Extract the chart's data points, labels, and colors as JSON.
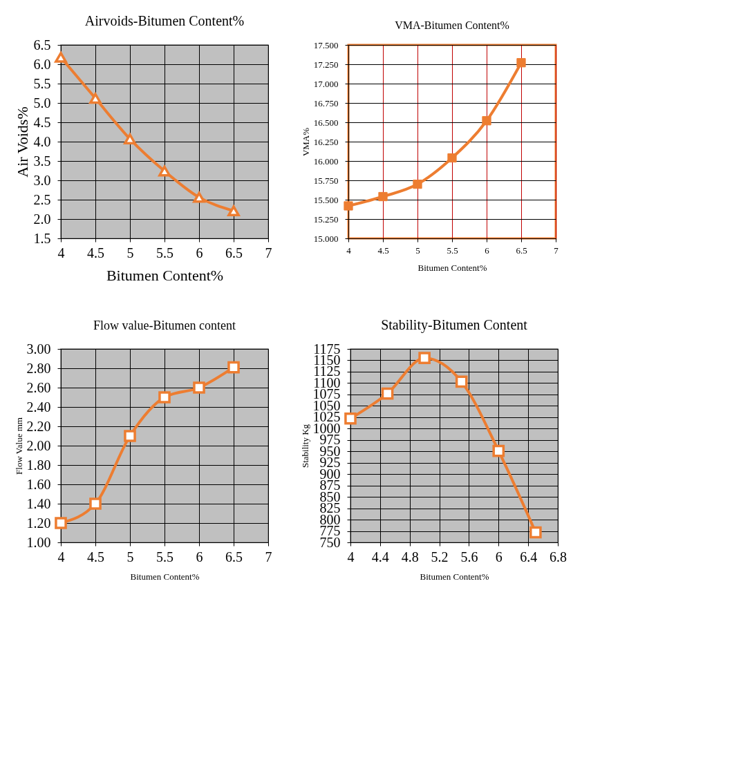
{
  "chart_data": [
    {
      "type": "line",
      "title": "Airvoids-Bitumen Content%",
      "xlabel": "Bitumen Content%",
      "ylabel": "Air Voids%",
      "x": [
        4,
        4.5,
        5,
        5.5,
        6,
        6.5
      ],
      "series": [
        {
          "color": "#ed7d31",
          "values": [
            6.18,
            5.12,
            4.07,
            3.24,
            2.56,
            2.21
          ]
        }
      ],
      "xlim": [
        4,
        7
      ],
      "xticks": [
        4,
        4.5,
        5,
        5.5,
        6,
        6.5,
        7
      ],
      "ylim": [
        1.5,
        6.5
      ],
      "yticks": [
        {
          "value": 1.5,
          "label": "1.5"
        },
        {
          "value": 2,
          "label": "2.0"
        },
        {
          "value": 2.5,
          "label": "2.5"
        },
        {
          "value": 3,
          "label": "3.0"
        },
        {
          "value": 3.5,
          "label": "3.5"
        },
        {
          "value": 4,
          "label": "4.0"
        },
        {
          "value": 4.5,
          "label": "4.5"
        },
        {
          "value": 5,
          "label": "5.0"
        },
        {
          "value": 5.5,
          "label": "5.5"
        },
        {
          "value": 6,
          "label": "6.0"
        },
        {
          "value": 6.5,
          "label": "6.5"
        }
      ],
      "grid": true,
      "marker": "triangle",
      "line_style": "solid"
    },
    {
      "type": "line",
      "title": "VMA-Bitumen Content%",
      "xlabel": "Bitumen Content%",
      "ylabel": "VMA%",
      "x": [
        4,
        4.5,
        5,
        5.5,
        6,
        6.5
      ],
      "series": [
        {
          "color": "#ed7d31",
          "values": [
            15.42,
            15.54,
            15.7,
            16.04,
            16.52,
            17.27
          ]
        }
      ],
      "xlim": [
        4,
        7
      ],
      "xticks": [
        4,
        4.5,
        5,
        5.5,
        6,
        6.5,
        7
      ],
      "ylim": [
        15,
        17.5
      ],
      "yticks": [
        {
          "value": 15,
          "label": "15.000"
        },
        {
          "value": 15.25,
          "label": "15.250"
        },
        {
          "value": 15.5,
          "label": "15.500"
        },
        {
          "value": 15.75,
          "label": "15.750"
        },
        {
          "value": 16,
          "label": "16.000"
        },
        {
          "value": 16.25,
          "label": "16.250"
        },
        {
          "value": 16.5,
          "label": "16.500"
        },
        {
          "value": 16.75,
          "label": "16.750"
        },
        {
          "value": 17,
          "label": "17.000"
        },
        {
          "value": 17.25,
          "label": "17.250"
        },
        {
          "value": 17.5,
          "label": "17.500"
        }
      ],
      "grid": true,
      "marker": "square",
      "line_style": "solid"
    },
    {
      "type": "line",
      "title": "Flow value-Bitumen content",
      "xlabel": "Bitumen Content%",
      "ylabel": "Flow Value mm",
      "x": [
        4,
        4.5,
        5,
        5.5,
        6,
        6.5
      ],
      "series": [
        {
          "color": "#ed7d31",
          "values": [
            1.2,
            1.4,
            2.1,
            2.5,
            2.6,
            2.81
          ]
        }
      ],
      "xlim": [
        4,
        7
      ],
      "xticks": [
        4,
        4.5,
        5,
        5.5,
        6,
        6.5,
        7
      ],
      "ylim": [
        1,
        3
      ],
      "yticks": [
        {
          "value": 1,
          "label": "1.00"
        },
        {
          "value": 1.2,
          "label": "1.20"
        },
        {
          "value": 1.4,
          "label": "1.40"
        },
        {
          "value": 1.6,
          "label": "1.60"
        },
        {
          "value": 1.8,
          "label": "1.80"
        },
        {
          "value": 2,
          "label": "2.00"
        },
        {
          "value": 2.2,
          "label": "2.20"
        },
        {
          "value": 2.4,
          "label": "2.40"
        },
        {
          "value": 2.6,
          "label": "2.60"
        },
        {
          "value": 2.8,
          "label": "2.80"
        },
        {
          "value": 3,
          "label": "3.00"
        }
      ],
      "grid": true,
      "marker": "square",
      "line_style": "solid"
    },
    {
      "type": "line",
      "title": "Stability-Bitumen Content",
      "xlabel": "Bitumen Content%",
      "ylabel": "Stability Kg",
      "x": [
        4,
        4.5,
        5,
        5.5,
        6,
        6.5
      ],
      "series": [
        {
          "color": "#ed7d31",
          "values": [
            1022,
            1077,
            1155,
            1103,
            951,
            772
          ]
        }
      ],
      "xlim": [
        4,
        6.8
      ],
      "xticks": [
        4,
        4.4,
        4.8,
        5.2,
        5.6,
        6,
        6.4,
        6.8
      ],
      "ylim": [
        750,
        1175
      ],
      "yticks": [
        750,
        775,
        800,
        825,
        850,
        875,
        900,
        925,
        950,
        975,
        1000,
        1025,
        1050,
        1075,
        1100,
        1125,
        1150,
        1175
      ],
      "grid": true,
      "marker": "square",
      "line_style": "solid"
    }
  ]
}
